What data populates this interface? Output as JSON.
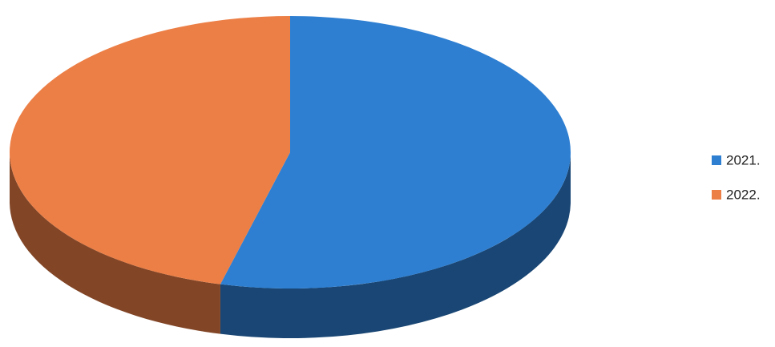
{
  "chart_data": {
    "type": "pie",
    "categories": [
      "2021.",
      "2022."
    ],
    "values": [
      54,
      46
    ],
    "colors": [
      "#2e7fd2",
      "#ec7f46"
    ],
    "legend": "right",
    "three_d": true
  }
}
